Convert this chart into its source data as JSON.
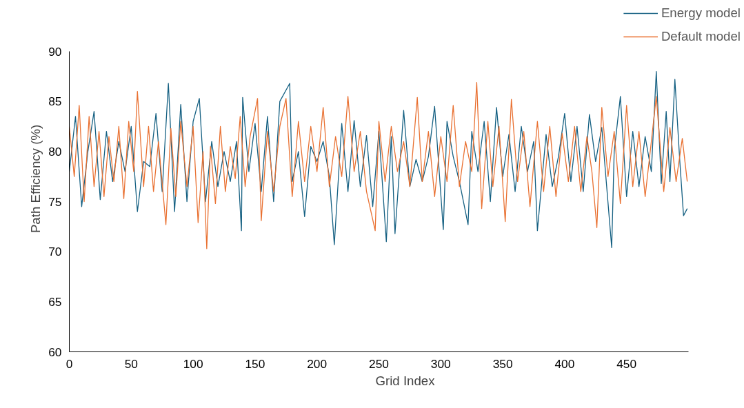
{
  "chart_data": {
    "type": "line",
    "xlabel": "Grid Index",
    "ylabel": "Path Efficiency (%)",
    "xlim": [
      0,
      500
    ],
    "xticks": [
      0,
      50,
      100,
      150,
      200,
      250,
      300,
      350,
      400,
      450
    ],
    "ylim": [
      60,
      90
    ],
    "yticks": [
      60,
      65,
      70,
      75,
      80,
      85,
      90
    ],
    "grid": false,
    "legend": "top right",
    "marker": "none",
    "line_style": "solid",
    "series": [
      {
        "name": "Energy model",
        "color": "#156082",
        "x": [
          0,
          5,
          10,
          15,
          20,
          25,
          30,
          35,
          40,
          45,
          50,
          55,
          60,
          65,
          70,
          75,
          80,
          85,
          90,
          95,
          100,
          105,
          110,
          115,
          120,
          125,
          130,
          135,
          139,
          140,
          145,
          150,
          155,
          160,
          165,
          170,
          178,
          180,
          185,
          190,
          195,
          200,
          205,
          210,
          214,
          220,
          225,
          230,
          235,
          240,
          245,
          250,
          256,
          260,
          263,
          270,
          275,
          280,
          285,
          290,
          295,
          302,
          305,
          310,
          315,
          322,
          325,
          330,
          335,
          340,
          345,
          350,
          355,
          360,
          365,
          370,
          375,
          378,
          385,
          390,
          395,
          400,
          405,
          410,
          415,
          420,
          425,
          430,
          438,
          440,
          445,
          450,
          455,
          460,
          465,
          470,
          474,
          478,
          482,
          485,
          489,
          493,
          496,
          499
        ],
        "values": [
          78,
          83.5,
          74.5,
          80,
          84,
          75.2,
          82,
          77,
          81,
          78,
          82.5,
          74,
          79,
          78.5,
          83.8,
          76,
          86.8,
          74,
          84.7,
          75,
          83,
          85.3,
          75,
          81,
          76.5,
          80,
          77,
          81,
          72.1,
          85.4,
          78,
          82.8,
          76,
          83.5,
          75,
          85,
          86.8,
          77,
          80,
          73.5,
          80.5,
          79,
          81,
          77.5,
          70.7,
          82.8,
          76,
          83.1,
          76.5,
          81.6,
          74.5,
          82,
          71,
          81.5,
          71.8,
          84.1,
          76.5,
          79.2,
          77,
          79.5,
          84.5,
          72.2,
          83,
          79.5,
          77,
          72.7,
          82,
          78,
          83,
          75,
          84.4,
          77.5,
          81.7,
          76,
          82.5,
          78,
          81,
          72.1,
          81.7,
          76.5,
          79.5,
          83.8,
          77,
          82.5,
          76,
          83.7,
          79,
          82.4,
          70.4,
          80,
          85.5,
          75.5,
          82,
          76.5,
          81.5,
          78,
          88,
          76.8,
          84,
          77,
          87.2,
          79,
          73.6,
          74.3
        ]
      },
      {
        "name": "Default model",
        "color": "#e97132",
        "x": [
          0,
          4,
          8,
          12,
          16,
          20,
          24,
          28,
          32,
          36,
          40,
          44,
          48,
          52,
          55,
          60,
          64,
          68,
          72,
          78,
          82,
          86,
          90,
          95,
          100,
          104,
          108,
          111,
          114,
          118,
          122,
          126,
          130,
          134,
          138,
          142,
          146,
          152,
          155,
          160,
          165,
          170,
          175,
          180,
          185,
          190,
          195,
          200,
          205,
          210,
          215,
          220,
          225,
          230,
          235,
          240,
          247,
          250,
          255,
          260,
          265,
          270,
          275,
          281,
          285,
          290,
          295,
          300,
          305,
          310,
          315,
          320,
          325,
          329,
          333,
          338,
          342,
          347,
          352,
          357,
          362,
          367,
          372,
          378,
          383,
          388,
          393,
          398,
          403,
          408,
          413,
          418,
          422,
          426,
          430,
          435,
          440,
          445,
          450,
          455,
          460,
          465,
          470,
          474,
          480,
          485,
          490,
          495,
          499
        ],
        "values": [
          82.5,
          77.5,
          84.6,
          75,
          83.5,
          76.5,
          82,
          75.5,
          81.5,
          77,
          82.5,
          75.3,
          83,
          78,
          86,
          76.5,
          82.5,
          76,
          81,
          72.7,
          82.3,
          75.5,
          83,
          76.5,
          82.5,
          72.9,
          80,
          70.3,
          80.5,
          74.8,
          82.5,
          76,
          80.5,
          77.3,
          83.5,
          76.5,
          81.5,
          85.3,
          73.1,
          82,
          76,
          82.5,
          85.3,
          75.5,
          83,
          77,
          82.5,
          78,
          84.4,
          76.5,
          81.5,
          77.5,
          85.5,
          78,
          82,
          76,
          72.1,
          83,
          77,
          82.5,
          78,
          81,
          76.5,
          85.4,
          77,
          82,
          75.5,
          81.5,
          77,
          84.6,
          76.5,
          81,
          78,
          86.9,
          74.3,
          83,
          76.5,
          82.5,
          73,
          85.2,
          77,
          82,
          74.5,
          83,
          76,
          82.5,
          75.5,
          81.8,
          77,
          82.5,
          76,
          81.5,
          78,
          72.4,
          84.4,
          77.5,
          82,
          74.8,
          84.6,
          76.5,
          82,
          75.5,
          81,
          85.5,
          76,
          82.4,
          77,
          81.3,
          77
        ]
      }
    ]
  }
}
